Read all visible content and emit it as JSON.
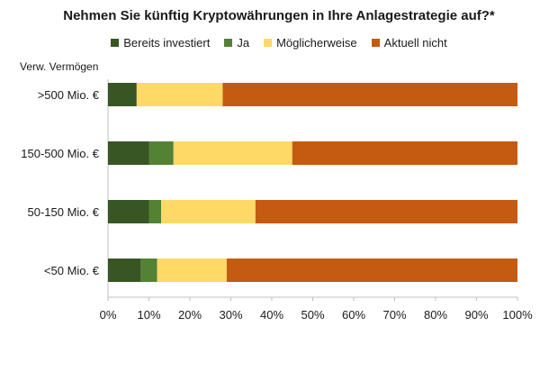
{
  "chart_data": {
    "type": "bar",
    "orientation": "horizontal",
    "stacked": true,
    "title": "Nehmen Sie künftig Kryptowährungen in Ihre Anlagestrategie auf?*",
    "ylabel": "Verw. Vermögen",
    "xlabel": "",
    "categories": [
      ">500 Mio. €",
      "150-500 Mio. €",
      "50-150 Mio. €",
      "<50 Mio. €"
    ],
    "series": [
      {
        "name": "Bereits investiert",
        "color": "#375623",
        "values": [
          7,
          10,
          10,
          8
        ]
      },
      {
        "name": "Ja",
        "color": "#548235",
        "values": [
          0,
          6,
          3,
          4
        ]
      },
      {
        "name": "Möglicherweise",
        "color": "#FFD966",
        "values": [
          21,
          29,
          23,
          17
        ]
      },
      {
        "name": "Aktuell nicht",
        "color": "#C55A11",
        "values": [
          72,
          55,
          64,
          71
        ]
      }
    ],
    "xlim": [
      0,
      100
    ],
    "xticks": [
      "0%",
      "10%",
      "20%",
      "30%",
      "40%",
      "50%",
      "60%",
      "70%",
      "80%",
      "90%",
      "100%"
    ],
    "legend_position": "top",
    "grid": false
  }
}
